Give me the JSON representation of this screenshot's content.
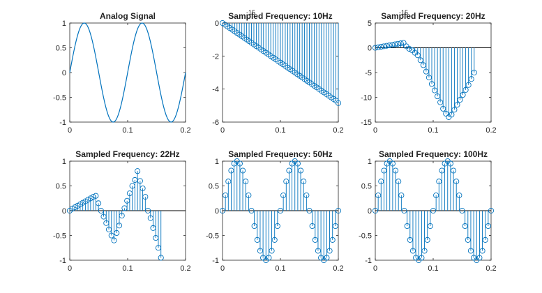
{
  "colors": {
    "series": "#0072BD",
    "axis": "#262626"
  },
  "chart_data": [
    {
      "type": "line",
      "title": "Analog Signal",
      "xlim": [
        0,
        0.2
      ],
      "ylim": [
        -1,
        1
      ],
      "xticks": [
        0,
        0.1,
        0.2
      ],
      "xtick_labels": [
        "0",
        "0.1",
        "0.2"
      ],
      "yticks": [
        -1,
        -0.5,
        0,
        0.5,
        1
      ],
      "ytick_labels": [
        "-1",
        "-0.5",
        "0",
        "0.5",
        "1"
      ],
      "grid": false,
      "signal": {
        "function": "sin",
        "frequency_hz": 10,
        "amplitude": 1
      }
    },
    {
      "type": "stem",
      "title": "Sampled Frequency: 10Hz",
      "xlim": [
        0,
        0.2
      ],
      "ylim": [
        -6,
        0
      ],
      "exponent_label": "-15",
      "xticks": [
        0,
        0.1,
        0.2
      ],
      "xtick_labels": [
        "0",
        "0.1",
        "0.2"
      ],
      "yticks": [
        -6,
        -4,
        -2,
        0
      ],
      "ytick_labels": [
        "-6",
        "-4",
        "-2",
        "0"
      ],
      "grid": false,
      "x_start": 0,
      "x_step": 0.004167,
      "values": [
        0,
        -0.1,
        -0.2,
        -0.3,
        -0.4,
        -0.5,
        -0.6,
        -0.7,
        -0.8,
        -0.9,
        -1.0,
        -1.1,
        -1.2,
        -1.3,
        -1.4,
        -1.5,
        -1.6,
        -1.7,
        -1.8,
        -1.9,
        -2.0,
        -2.1,
        -2.2,
        -2.3,
        -2.4,
        -2.5,
        -2.6,
        -2.7,
        -2.8,
        -2.9,
        -3.0,
        -3.1,
        -3.2,
        -3.3,
        -3.4,
        -3.5,
        -3.6,
        -3.7,
        -3.8,
        -3.9,
        -4.0,
        -4.1,
        -4.2,
        -4.3,
        -4.4,
        -4.5,
        -4.6,
        -4.7,
        -4.85
      ]
    },
    {
      "type": "stem",
      "title": "Sampled Frequency: 20Hz",
      "xlim": [
        0,
        0.2
      ],
      "ylim": [
        -15,
        5
      ],
      "exponent_label": "-15",
      "xticks": [
        0,
        0.1,
        0.2
      ],
      "xtick_labels": [
        "0",
        "0.1",
        "0.2"
      ],
      "yticks": [
        -15,
        -10,
        -5,
        0,
        5
      ],
      "ytick_labels": [
        "-15",
        "-10",
        "-5",
        "0",
        "5"
      ],
      "grid": false,
      "x_start": 0,
      "x_step": 0.00488,
      "values": [
        0,
        0.1,
        0.2,
        0.3,
        0.4,
        0.5,
        0.6,
        0.7,
        0.8,
        0.9,
        1.0,
        0.3,
        -0.2,
        -0.5,
        -1.0,
        -1.5,
        -2.5,
        -3.5,
        -4.8,
        -6.0,
        -7.3,
        -8.6,
        -9.8,
        -11.0,
        -12.3,
        -13.3,
        -14.0,
        -13.5,
        -12.5,
        -11.5,
        -10.5,
        -9.5,
        -8.5,
        -7.5,
        -6.3,
        -5.0
      ]
    },
    {
      "type": "stem",
      "title": "Sampled Frequency: 22Hz",
      "xlim": [
        0,
        0.2
      ],
      "ylim": [
        -1,
        1
      ],
      "xticks": [
        0,
        0.1,
        0.2
      ],
      "xtick_labels": [
        "0",
        "0.1",
        "0.2"
      ],
      "yticks": [
        -1,
        -0.5,
        0,
        0.5,
        1
      ],
      "ytick_labels": [
        "-1",
        "-0.5",
        "0",
        "0.5",
        "1"
      ],
      "grid": false,
      "x_start": 0,
      "x_step": 0.0045,
      "values": [
        0,
        0.04,
        0.07,
        0.1,
        0.13,
        0.16,
        0.19,
        0.22,
        0.25,
        0.28,
        0.3,
        0.15,
        0.0,
        -0.12,
        -0.25,
        -0.38,
        -0.5,
        -0.6,
        -0.45,
        -0.3,
        -0.1,
        0.05,
        0.2,
        0.35,
        0.5,
        0.62,
        0.8,
        0.6,
        0.45,
        0.28,
        0.0,
        -0.15,
        -0.35,
        -0.55,
        -0.75,
        -0.95
      ]
    },
    {
      "type": "stem",
      "title": "Sampled Frequency: 50Hz",
      "xlim": [
        0,
        0.2
      ],
      "ylim": [
        -1,
        1
      ],
      "xticks": [
        0,
        0.1,
        0.2
      ],
      "xtick_labels": [
        "0",
        "0.1",
        "0.2"
      ],
      "yticks": [
        -1,
        -0.5,
        0,
        0.5,
        1
      ],
      "ytick_labels": [
        "-1",
        "-0.5",
        "0",
        "0.5",
        "1"
      ],
      "grid": false,
      "x_start": 0,
      "x_step": 0.005,
      "values": [
        0,
        0.31,
        0.59,
        0.81,
        0.95,
        1,
        0.95,
        0.81,
        0.59,
        0.31,
        0,
        -0.31,
        -0.59,
        -0.81,
        -0.95,
        -1,
        -0.95,
        -0.81,
        -0.59,
        -0.31,
        0,
        0.31,
        0.59,
        0.81,
        0.95,
        1,
        0.95,
        0.81,
        0.59,
        0.31,
        0,
        -0.31,
        -0.59,
        -0.81,
        -0.95,
        -1,
        -0.95,
        -0.81,
        -0.59,
        -0.31,
        0
      ]
    },
    {
      "type": "stem",
      "title": "Sampled Frequency: 100Hz",
      "xlim": [
        0,
        0.2
      ],
      "ylim": [
        -1,
        1
      ],
      "xticks": [
        0,
        0.1,
        0.2
      ],
      "xtick_labels": [
        "0",
        "0.1",
        "0.2"
      ],
      "yticks": [
        -1,
        -0.5,
        0,
        0.5,
        1
      ],
      "ytick_labels": [
        "-1",
        "-0.5",
        "0",
        "0.5",
        "1"
      ],
      "grid": false,
      "x_start": 0,
      "x_step": 0.005,
      "values": [
        0,
        0.31,
        0.59,
        0.81,
        0.95,
        1,
        0.95,
        0.81,
        0.59,
        0.31,
        0,
        -0.31,
        -0.59,
        -0.81,
        -0.95,
        -1,
        -0.95,
        -0.81,
        -0.59,
        -0.31,
        0,
        0.31,
        0.59,
        0.81,
        0.95,
        1,
        0.95,
        0.81,
        0.59,
        0.31,
        0,
        -0.31,
        -0.59,
        -0.81,
        -0.95,
        -1,
        -0.95,
        -0.81,
        -0.59,
        -0.31,
        0
      ]
    }
  ]
}
